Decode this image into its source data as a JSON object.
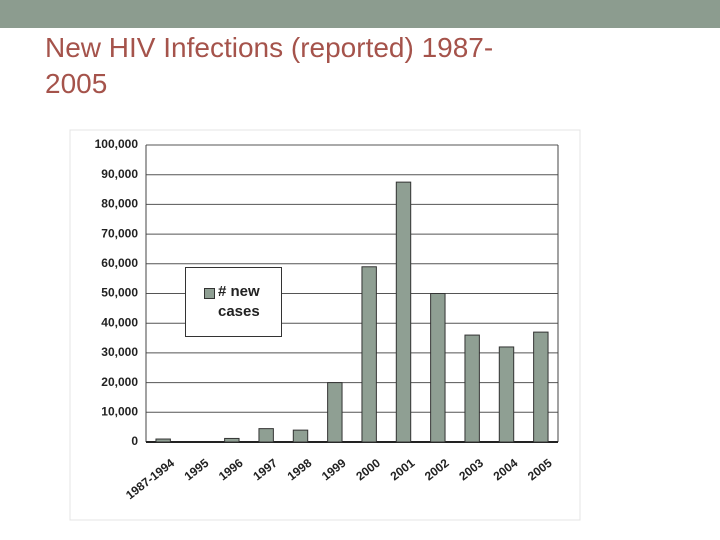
{
  "chart_data": {
    "type": "bar",
    "title": "New HIV Infections (reported) 1987-2005",
    "categories": [
      "1987-1994",
      "1995",
      "1996",
      "1997",
      "1998",
      "1999",
      "2000",
      "2001",
      "2002",
      "2003",
      "2004",
      "2005"
    ],
    "series": [
      {
        "name": "# new cases",
        "color": "#8f9f93",
        "values": [
          1000,
          0,
          1200,
          4500,
          4000,
          20000,
          59000,
          87500,
          50000,
          36000,
          32000,
          37000
        ]
      }
    ],
    "ylim": [
      0,
      100000
    ],
    "yticks": [
      0,
      {
        "value": 10000,
        "label": "10,000"
      },
      {
        "value": 20000,
        "label": "20,000"
      },
      {
        "value": 30000,
        "label": "30,000"
      },
      {
        "value": 40000,
        "label": "40,000"
      },
      {
        "value": 50000,
        "label": "50,000"
      },
      {
        "value": 60000,
        "label": "60,000"
      },
      {
        "value": 70000,
        "label": "70,000"
      },
      {
        "value": 80000,
        "label": "80,000"
      },
      {
        "value": 90000,
        "label": "90,000"
      },
      {
        "value": 100000,
        "label": "100,000"
      }
    ],
    "grid": true
  }
}
